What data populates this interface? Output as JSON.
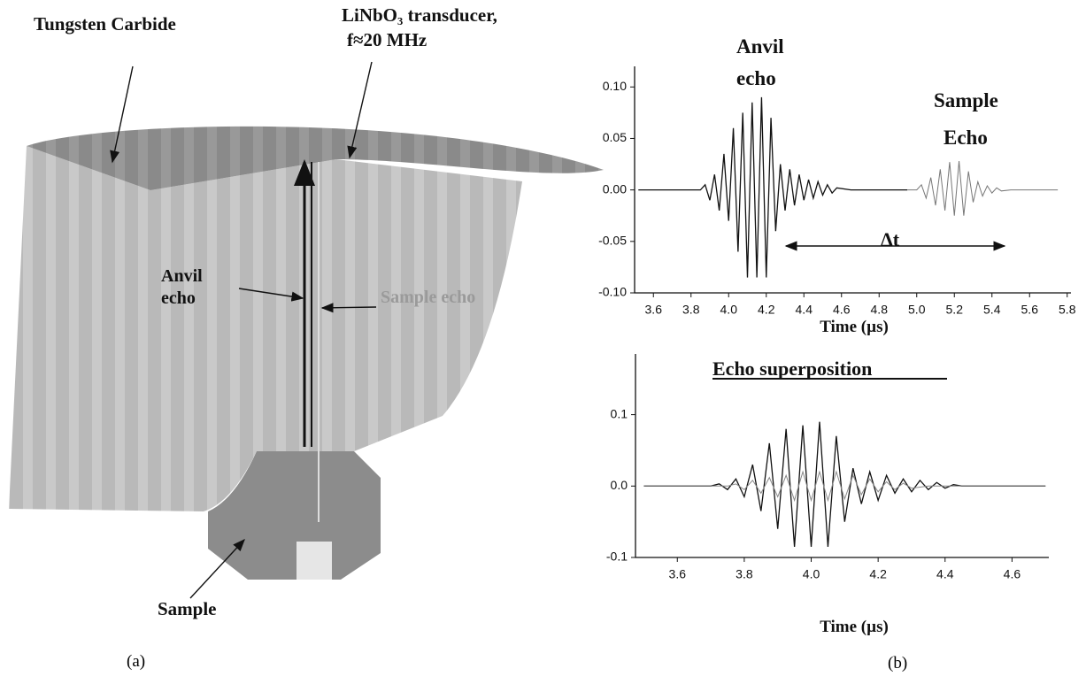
{
  "diagram": {
    "labels": {
      "tungsten": "Tungsten Carbide",
      "transducer_lines": [
        "LiNbO₃ transducer,",
        "f≈20 MHz"
      ],
      "anvil_echo_lines": [
        "Anvil",
        "echo"
      ],
      "sample_echo": "Sample echo",
      "sample": "Sample"
    },
    "caption": "(a)"
  },
  "caption_b": "(b)",
  "chart_data": [
    {
      "type": "line",
      "x_label": "Time (µs)",
      "annotations": [
        "Anvil",
        "echo",
        "Sample",
        "Echo",
        "Δt"
      ],
      "xlim": [
        3.5,
        5.82
      ],
      "ylim": [
        -0.1,
        0.12
      ],
      "xticks": [
        3.6,
        3.8,
        {
          "value": 4,
          "label": "4.0"
        },
        4.2,
        4.4,
        4.6,
        4.8,
        {
          "value": 5,
          "label": "5.0"
        },
        5.2,
        5.4,
        5.6,
        5.8
      ],
      "yticks": [
        {
          "value": 0.1,
          "label": "0.10"
        },
        {
          "value": 0.05,
          "label": "0.05"
        },
        {
          "value": 0,
          "label": "0.00"
        },
        {
          "value": -0.05,
          "label": "-0.05"
        },
        {
          "value": -0.1,
          "label": "-0.10"
        }
      ],
      "series": [
        {
          "color": "#111111",
          "x": [
            3.52,
            3.85,
            3.875,
            3.9,
            3.925,
            3.95,
            3.975,
            4.0,
            4.025,
            4.05,
            4.075,
            4.1,
            4.125,
            4.15,
            4.175,
            4.2,
            4.225,
            4.25,
            4.275,
            4.3,
            4.325,
            4.35,
            4.375,
            4.4,
            4.425,
            4.45,
            4.475,
            4.5,
            4.525,
            4.55,
            4.575,
            4.65,
            4.95
          ],
          "values": [
            0,
            0,
            0.005,
            -0.01,
            0.015,
            -0.02,
            0.035,
            -0.03,
            0.06,
            -0.06,
            0.075,
            -0.085,
            0.085,
            -0.085,
            0.09,
            -0.085,
            0.07,
            -0.04,
            0.025,
            -0.02,
            0.02,
            -0.015,
            0.015,
            -0.01,
            0.01,
            -0.008,
            0.008,
            -0.005,
            0.005,
            -0.003,
            0.002,
            0,
            0
          ]
        },
        {
          "color": "#777777",
          "x": [
            4.95,
            5.0,
            5.025,
            5.05,
            5.075,
            5.1,
            5.125,
            5.15,
            5.175,
            5.2,
            5.225,
            5.25,
            5.275,
            5.3,
            5.325,
            5.35,
            5.375,
            5.4,
            5.425,
            5.45,
            5.5,
            5.75
          ],
          "values": [
            0,
            0,
            0.005,
            -0.008,
            0.012,
            -0.015,
            0.02,
            -0.02,
            0.027,
            -0.025,
            0.028,
            -0.025,
            0.018,
            -0.012,
            0.008,
            -0.006,
            0.004,
            -0.003,
            0.002,
            -0.001,
            0,
            0
          ]
        }
      ]
    },
    {
      "type": "line",
      "title": "Echo superposition",
      "x_label": "Time (µs)",
      "xlim": [
        3.475,
        4.71
      ],
      "ylim": [
        -0.1,
        0.185
      ],
      "xticks": [
        3.6,
        3.8,
        {
          "value": 4,
          "label": "4.0"
        },
        4.2,
        4.4,
        4.6
      ],
      "yticks": [
        0.1,
        {
          "value": 0,
          "label": "0.0"
        },
        -0.1
      ],
      "series": [
        {
          "color": "#111111",
          "x": [
            3.5,
            3.7,
            3.725,
            3.75,
            3.775,
            3.8,
            3.825,
            3.85,
            3.875,
            3.9,
            3.925,
            3.95,
            3.975,
            4,
            4.025,
            4.05,
            4.075,
            4.1,
            4.125,
            4.15,
            4.175,
            4.2,
            4.225,
            4.25,
            4.275,
            4.3,
            4.325,
            4.35,
            4.375,
            4.4,
            4.425,
            4.45,
            4.7
          ],
          "values": [
            0,
            0,
            0.003,
            -0.005,
            0.01,
            -0.015,
            0.03,
            -0.035,
            0.06,
            -0.06,
            0.08,
            -0.085,
            0.085,
            -0.085,
            0.09,
            -0.085,
            0.07,
            -0.05,
            0.025,
            -0.025,
            0.02,
            -0.02,
            0.015,
            -0.01,
            0.01,
            -0.008,
            0.008,
            -0.005,
            0.005,
            -0.003,
            0.002,
            0,
            0
          ]
        },
        {
          "color": "#888888",
          "x": [
            3.5,
            3.75,
            3.775,
            3.8,
            3.825,
            3.85,
            3.875,
            3.9,
            3.925,
            3.95,
            3.975,
            4,
            4.025,
            4.05,
            4.075,
            4.1,
            4.125,
            4.15,
            4.175,
            4.2,
            4.225,
            4.25,
            4.275,
            4.3,
            4.35,
            4.7
          ],
          "values": [
            0,
            0,
            0.003,
            -0.005,
            0.008,
            -0.01,
            0.012,
            -0.015,
            0.015,
            -0.02,
            0.02,
            -0.02,
            0.02,
            -0.02,
            0.02,
            -0.018,
            0.015,
            -0.012,
            0.01,
            -0.008,
            0.006,
            -0.005,
            0.004,
            -0.003,
            0,
            0
          ]
        }
      ]
    }
  ]
}
